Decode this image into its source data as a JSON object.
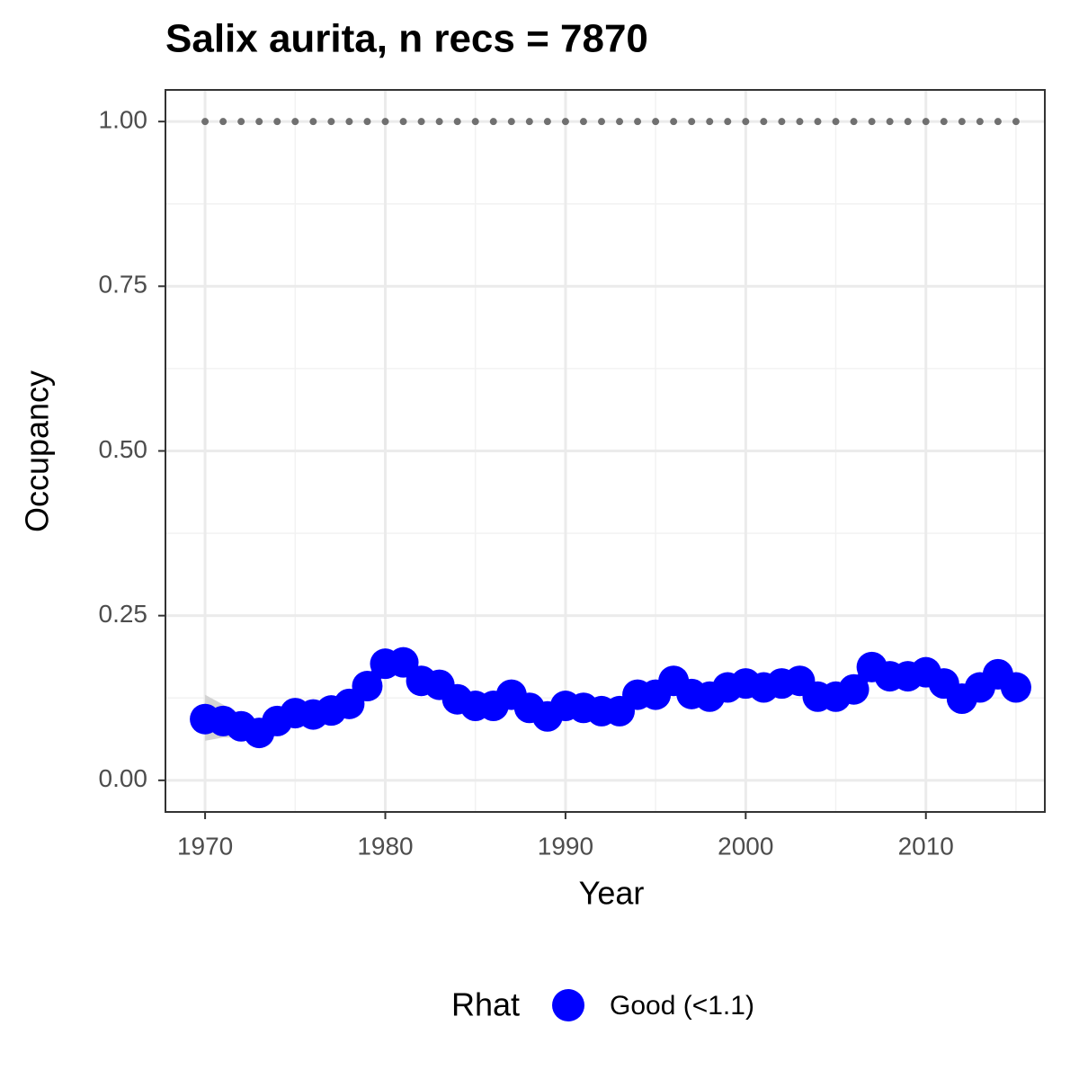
{
  "chart_data": {
    "type": "line",
    "title": "Salix aurita, n recs = 7870",
    "x_label": "Year",
    "y_label": "Occupancy",
    "x": [
      1970,
      1971,
      1972,
      1973,
      1974,
      1975,
      1976,
      1977,
      1978,
      1979,
      1980,
      1981,
      1982,
      1983,
      1984,
      1985,
      1986,
      1987,
      1988,
      1989,
      1990,
      1991,
      1992,
      1993,
      1994,
      1995,
      1996,
      1997,
      1998,
      1999,
      2000,
      2001,
      2002,
      2003,
      2004,
      2005,
      2006,
      2007,
      2008,
      2009,
      2010,
      2011,
      2012,
      2013,
      2014,
      2015
    ],
    "series": [
      {
        "name": "Good (<1.1)",
        "color": "#0000ff",
        "values": [
          0.093,
          0.09,
          0.082,
          0.072,
          0.09,
          0.102,
          0.1,
          0.106,
          0.116,
          0.143,
          0.177,
          0.179,
          0.151,
          0.145,
          0.123,
          0.113,
          0.113,
          0.13,
          0.11,
          0.097,
          0.113,
          0.11,
          0.105,
          0.105,
          0.13,
          0.13,
          0.151,
          0.131,
          0.127,
          0.141,
          0.147,
          0.141,
          0.147,
          0.151,
          0.127,
          0.127,
          0.138,
          0.172,
          0.158,
          0.158,
          0.164,
          0.147,
          0.124,
          0.141,
          0.161,
          0.141
        ],
        "lower": [
          0.06,
          0.065,
          0.065,
          0.058,
          0.072,
          0.084,
          0.084,
          0.09,
          0.1,
          0.127,
          0.16,
          0.163,
          0.135,
          0.129,
          0.107,
          0.097,
          0.097,
          0.114,
          0.094,
          0.081,
          0.097,
          0.094,
          0.089,
          0.089,
          0.114,
          0.114,
          0.135,
          0.115,
          0.111,
          0.125,
          0.131,
          0.125,
          0.131,
          0.135,
          0.111,
          0.111,
          0.122,
          0.155,
          0.142,
          0.142,
          0.148,
          0.131,
          0.108,
          0.124,
          0.144,
          0.123
        ],
        "upper": [
          0.13,
          0.115,
          0.1,
          0.09,
          0.108,
          0.12,
          0.116,
          0.122,
          0.132,
          0.159,
          0.196,
          0.196,
          0.167,
          0.161,
          0.139,
          0.129,
          0.129,
          0.146,
          0.126,
          0.113,
          0.129,
          0.126,
          0.121,
          0.121,
          0.146,
          0.146,
          0.167,
          0.147,
          0.143,
          0.157,
          0.163,
          0.157,
          0.163,
          0.167,
          0.143,
          0.143,
          0.154,
          0.189,
          0.174,
          0.174,
          0.18,
          0.163,
          0.14,
          0.158,
          0.178,
          0.16
        ]
      }
    ],
    "band_color": "#d3d3d3",
    "reference": {
      "value": 1,
      "color": "#707070"
    },
    "legend_title": "Rhat",
    "legend_position": "bottom",
    "xlim": [
      1967.8,
      2016.6
    ],
    "ylim": [
      -0.048,
      1.048
    ],
    "xticks": [
      1970,
      1980,
      1990,
      2000,
      2010
    ],
    "minor_xticks": [
      1975,
      1985,
      1995,
      2005,
      2015
    ],
    "yticks": [
      {
        "value": 0,
        "label": "0.00"
      },
      {
        "value": 0.25,
        "label": "0.25"
      },
      {
        "value": 0.5,
        "label": "0.50"
      },
      {
        "value": 0.75,
        "label": "0.75"
      },
      {
        "value": 1,
        "label": "1.00"
      }
    ],
    "minor_yticks": [
      0.125,
      0.375,
      0.625,
      0.875
    ],
    "grid": true
  }
}
